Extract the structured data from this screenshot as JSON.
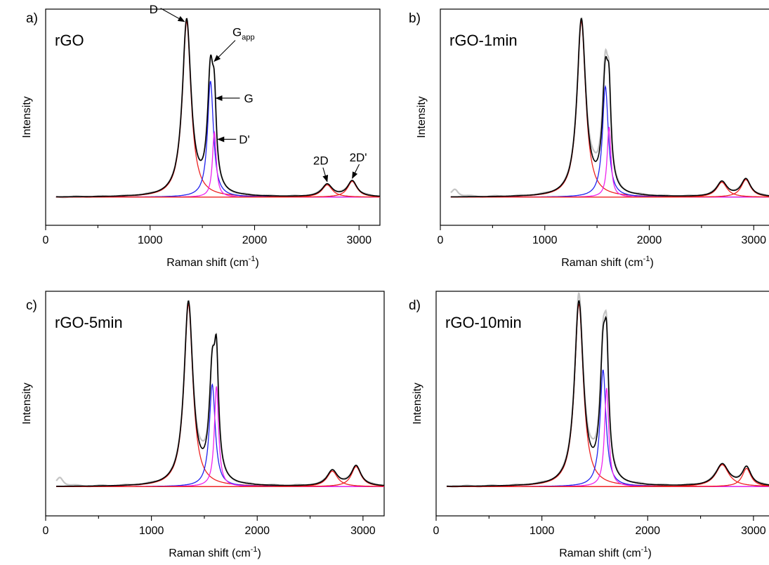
{
  "colors": {
    "measured": "#c4c4c4",
    "fit": "#000000",
    "D": "#ee2222",
    "G": "#2222ee",
    "D_prime": "#ee22ee",
    "two_D": "#ee2222",
    "two_D_prime": "#ee2222"
  },
  "peak_labels": {
    "D": "D",
    "G_app_main": "G",
    "G_app_sub": "app",
    "G": "G",
    "D_prime": "D'",
    "two_D": "2D",
    "two_D_prime": "2D'"
  },
  "chart_data": [
    {
      "type": "line",
      "panel": "a)",
      "label": "rGO",
      "xlabel": "Raman shift (cm",
      "xlabel_sup": "-1",
      "xlabel_close": ")",
      "ylabel": "Intensity",
      "xlim": [
        0,
        3200
      ],
      "ylim": [
        -0.16,
        1.07
      ],
      "xticks": [
        0,
        1000,
        2000,
        3000
      ],
      "xtick_labels": [
        "0",
        "1000",
        "2000",
        "3000"
      ],
      "annotated": true,
      "peaks": [
        {
          "name": "D",
          "center": 1350,
          "height": 1.0,
          "width": 50
        },
        {
          "name": "G",
          "center": 1578,
          "height": 0.66,
          "width": 34
        },
        {
          "name": "D'",
          "center": 1615,
          "height": 0.37,
          "width": 22
        },
        {
          "name": "2D",
          "center": 2695,
          "height": 0.07,
          "width": 60
        },
        {
          "name": "2D'",
          "center": 2935,
          "height": 0.09,
          "width": 55
        }
      ],
      "measured_excess": []
    },
    {
      "type": "line",
      "panel": "b)",
      "label": "rGO-1min",
      "xlabel": "Raman shift (cm",
      "xlabel_sup": "-1",
      "xlabel_close": ")",
      "ylabel": "Intensity",
      "xlim": [
        0,
        3200
      ],
      "ylim": [
        -0.16,
        1.07
      ],
      "xticks": [
        0,
        1000,
        2000,
        3000
      ],
      "xtick_labels": [
        "0",
        "1000",
        "2000",
        "3000"
      ],
      "annotated": false,
      "peaks": [
        {
          "name": "D",
          "center": 1350,
          "height": 1.0,
          "width": 50
        },
        {
          "name": "G",
          "center": 1580,
          "height": 0.63,
          "width": 34
        },
        {
          "name": "D'",
          "center": 1615,
          "height": 0.4,
          "width": 22
        },
        {
          "name": "2D",
          "center": 2695,
          "height": 0.085,
          "width": 60
        },
        {
          "name": "2D'",
          "center": 2925,
          "height": 0.1,
          "width": 55
        }
      ],
      "measured_excess": [
        {
          "center": 140,
          "height": 0.045,
          "width": 40
        },
        {
          "center": 1560,
          "height": 0.05,
          "width": 40
        },
        {
          "center": 1470,
          "height": 0.04,
          "width": 50
        }
      ]
    },
    {
      "type": "line",
      "panel": "c)",
      "label": "rGO-5min",
      "xlabel": "Raman shift (cm",
      "xlabel_sup": "-1",
      "xlabel_close": ")",
      "ylabel": "Intensity",
      "xlim": [
        0,
        3200
      ],
      "ylim": [
        -0.16,
        1.07
      ],
      "xticks": [
        0,
        1000,
        2000,
        3000
      ],
      "xtick_labels": [
        "0",
        "1000",
        "2000",
        "3000"
      ],
      "annotated": false,
      "peaks": [
        {
          "name": "D",
          "center": 1350,
          "height": 1.0,
          "width": 50
        },
        {
          "name": "G",
          "center": 1575,
          "height": 0.56,
          "width": 34
        },
        {
          "name": "D'",
          "center": 1615,
          "height": 0.55,
          "width": 24
        },
        {
          "name": "2D",
          "center": 2710,
          "height": 0.085,
          "width": 60
        },
        {
          "name": "2D'",
          "center": 2935,
          "height": 0.11,
          "width": 55
        }
      ],
      "measured_excess": [
        {
          "center": 135,
          "height": 0.05,
          "width": 40
        },
        {
          "center": 1480,
          "height": 0.04,
          "width": 50
        }
      ]
    },
    {
      "type": "line",
      "panel": "d)",
      "label": "rGO-10min",
      "xlabel": "Raman shift (cm",
      "xlabel_sup": "-1",
      "xlabel_close": ")",
      "ylabel": "Intensity",
      "xlim": [
        0,
        3200
      ],
      "ylim": [
        -0.16,
        1.07
      ],
      "xticks": [
        0,
        1000,
        2000,
        3000
      ],
      "xtick_labels": [
        "0",
        "1000",
        "2000",
        "3000"
      ],
      "annotated": false,
      "peaks": [
        {
          "name": "D",
          "center": 1350,
          "height": 1.0,
          "width": 50
        },
        {
          "name": "G",
          "center": 1578,
          "height": 0.64,
          "width": 34
        },
        {
          "name": "D'",
          "center": 1612,
          "height": 0.54,
          "width": 24
        },
        {
          "name": "2D",
          "center": 2705,
          "height": 0.12,
          "width": 75
        },
        {
          "name": "2D'",
          "center": 2935,
          "height": 0.1,
          "width": 50
        }
      ],
      "measured_excess": [
        {
          "center": 1345,
          "height": 0.04,
          "width": 30
        },
        {
          "center": 1590,
          "height": 0.04,
          "width": 30
        },
        {
          "center": 1480,
          "height": 0.04,
          "width": 50
        }
      ]
    }
  ]
}
